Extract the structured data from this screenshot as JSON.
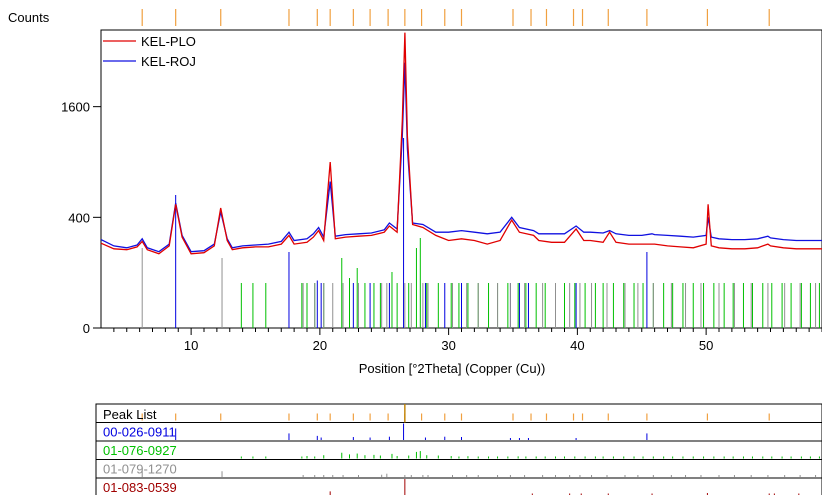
{
  "chart_data": {
    "type": "line",
    "ylabel": "Counts",
    "xlabel": "Position [°2Theta] (Copper (Cu))",
    "xlim": [
      3,
      59
    ],
    "ylim": [
      0,
      2900
    ],
    "y_scale": "sqrt",
    "x_ticks": [
      10,
      20,
      30,
      40,
      50
    ],
    "y_ticks": [
      0,
      400,
      1600
    ],
    "grid": false,
    "legend_position": "top-left",
    "series": [
      {
        "name": "KEL-PLO",
        "color": "#e00000",
        "points": [
          [
            3,
            235
          ],
          [
            4,
            205
          ],
          [
            5,
            200
          ],
          [
            5.8,
            215
          ],
          [
            6.2,
            245
          ],
          [
            6.6,
            200
          ],
          [
            7.5,
            180
          ],
          [
            8.3,
            220
          ],
          [
            8.8,
            500
          ],
          [
            9.3,
            270
          ],
          [
            10,
            180
          ],
          [
            11,
            185
          ],
          [
            11.8,
            220
          ],
          [
            12.3,
            470
          ],
          [
            12.8,
            250
          ],
          [
            13.2,
            200
          ],
          [
            14,
            210
          ],
          [
            15,
            215
          ],
          [
            16,
            215
          ],
          [
            17,
            230
          ],
          [
            17.6,
            280
          ],
          [
            18,
            230
          ],
          [
            19,
            240
          ],
          [
            19.5,
            270
          ],
          [
            19.9,
            310
          ],
          [
            20.3,
            250
          ],
          [
            20.8,
            900
          ],
          [
            21.2,
            260
          ],
          [
            22,
            270
          ],
          [
            23,
            275
          ],
          [
            24,
            280
          ],
          [
            25,
            300
          ],
          [
            25.4,
            340
          ],
          [
            26,
            300
          ],
          [
            26.4,
            1400
          ],
          [
            26.6,
            2850
          ],
          [
            26.8,
            1200
          ],
          [
            27.2,
            350
          ],
          [
            28,
            330
          ],
          [
            29,
            280
          ],
          [
            30,
            250
          ],
          [
            31,
            260
          ],
          [
            32,
            250
          ],
          [
            33,
            230
          ],
          [
            34,
            250
          ],
          [
            34.9,
            380
          ],
          [
            35.5,
            300
          ],
          [
            36.6,
            280
          ],
          [
            37,
            250
          ],
          [
            38,
            240
          ],
          [
            39,
            240
          ],
          [
            39.9,
            320
          ],
          [
            40.5,
            250
          ],
          [
            41,
            250
          ],
          [
            42,
            240
          ],
          [
            42.5,
            300
          ],
          [
            43,
            240
          ],
          [
            44,
            230
          ],
          [
            45,
            230
          ],
          [
            45.8,
            230
          ],
          [
            46,
            230
          ],
          [
            47,
            220
          ],
          [
            48,
            215
          ],
          [
            49,
            210
          ],
          [
            50,
            230
          ],
          [
            50.15,
            500
          ],
          [
            50.4,
            220
          ],
          [
            51,
            210
          ],
          [
            52,
            205
          ],
          [
            53,
            205
          ],
          [
            54,
            210
          ],
          [
            54.8,
            230
          ],
          [
            55,
            220
          ],
          [
            56,
            210
          ],
          [
            57,
            205
          ],
          [
            58,
            205
          ],
          [
            59,
            205
          ]
        ]
      },
      {
        "name": "KEL-ROJ",
        "color": "#1010e0",
        "points": [
          [
            3,
            255
          ],
          [
            4,
            220
          ],
          [
            5,
            210
          ],
          [
            5.8,
            225
          ],
          [
            6.2,
            260
          ],
          [
            6.6,
            210
          ],
          [
            7.5,
            190
          ],
          [
            8.3,
            230
          ],
          [
            8.8,
            510
          ],
          [
            9.3,
            280
          ],
          [
            10,
            190
          ],
          [
            11,
            195
          ],
          [
            11.8,
            230
          ],
          [
            12.3,
            440
          ],
          [
            12.8,
            260
          ],
          [
            13.2,
            210
          ],
          [
            14,
            220
          ],
          [
            15,
            225
          ],
          [
            16,
            230
          ],
          [
            17,
            245
          ],
          [
            17.6,
            300
          ],
          [
            18,
            250
          ],
          [
            19,
            260
          ],
          [
            19.5,
            290
          ],
          [
            19.9,
            330
          ],
          [
            20.3,
            270
          ],
          [
            20.8,
            700
          ],
          [
            21.2,
            275
          ],
          [
            22,
            285
          ],
          [
            23,
            290
          ],
          [
            24,
            295
          ],
          [
            25,
            315
          ],
          [
            25.4,
            360
          ],
          [
            26,
            320
          ],
          [
            26.4,
            1200
          ],
          [
            26.6,
            2300
          ],
          [
            26.8,
            1050
          ],
          [
            27.2,
            360
          ],
          [
            28,
            350
          ],
          [
            29,
            300
          ],
          [
            30,
            300
          ],
          [
            31,
            310
          ],
          [
            32,
            300
          ],
          [
            33,
            290
          ],
          [
            34,
            300
          ],
          [
            34.9,
            400
          ],
          [
            35.5,
            330
          ],
          [
            36.6,
            310
          ],
          [
            37,
            290
          ],
          [
            38,
            290
          ],
          [
            39,
            290
          ],
          [
            39.9,
            340
          ],
          [
            40.5,
            300
          ],
          [
            41,
            300
          ],
          [
            42,
            295
          ],
          [
            42.5,
            310
          ],
          [
            43,
            290
          ],
          [
            44,
            280
          ],
          [
            45,
            280
          ],
          [
            45.8,
            290
          ],
          [
            46,
            285
          ],
          [
            47,
            280
          ],
          [
            48,
            275
          ],
          [
            49,
            270
          ],
          [
            50,
            280
          ],
          [
            50.15,
            400
          ],
          [
            50.4,
            270
          ],
          [
            51,
            260
          ],
          [
            52,
            255
          ],
          [
            53,
            255
          ],
          [
            54,
            260
          ],
          [
            54.8,
            275
          ],
          [
            55,
            265
          ],
          [
            56,
            255
          ],
          [
            57,
            250
          ],
          [
            58,
            250
          ],
          [
            59,
            250
          ]
        ]
      }
    ],
    "peak_list": [
      6.2,
      8.8,
      12.3,
      17.6,
      19.8,
      20.8,
      22.6,
      23.9,
      25.3,
      26.6,
      27.9,
      29.7,
      31.0,
      35.0,
      36.4,
      37.6,
      39.7,
      40.4,
      42.4,
      45.4,
      50.1,
      54.9
    ],
    "reference_patterns": [
      {
        "code": "00-026-0911",
        "color": "#0000e0",
        "peaks": [
          [
            8.8,
            70
          ],
          [
            17.6,
            40
          ],
          [
            19.8,
            25
          ],
          [
            20.1,
            15
          ],
          [
            22.6,
            18
          ],
          [
            23.9,
            15
          ],
          [
            25.4,
            20
          ],
          [
            26.5,
            100
          ],
          [
            28.2,
            15
          ],
          [
            29.7,
            20
          ],
          [
            31.0,
            18
          ],
          [
            34.8,
            12
          ],
          [
            35.5,
            10
          ],
          [
            36.2,
            10
          ],
          [
            39.9,
            12
          ],
          [
            45.4,
            40
          ]
        ]
      },
      {
        "code": "01-076-0927",
        "color": "#00c000",
        "peaks": [
          [
            13.9,
            12
          ],
          [
            14.8,
            8
          ],
          [
            15.8,
            10
          ],
          [
            18.6,
            10
          ],
          [
            19.0,
            15
          ],
          [
            19.6,
            10
          ],
          [
            20.3,
            20
          ],
          [
            21.7,
            35
          ],
          [
            22.3,
            25
          ],
          [
            22.9,
            30
          ],
          [
            23.5,
            20
          ],
          [
            24.2,
            22
          ],
          [
            24.7,
            18
          ],
          [
            25.6,
            28
          ],
          [
            26.0,
            15
          ],
          [
            26.9,
            18
          ],
          [
            27.5,
            40
          ],
          [
            27.8,
            45
          ],
          [
            28.3,
            20
          ],
          [
            29.2,
            18
          ],
          [
            30.2,
            15
          ],
          [
            30.8,
            12
          ],
          [
            31.5,
            14
          ],
          [
            32.3,
            12
          ],
          [
            33.1,
            10
          ],
          [
            33.8,
            11
          ],
          [
            34.6,
            12
          ],
          [
            35.4,
            13
          ],
          [
            36.0,
            10
          ],
          [
            36.8,
            12
          ],
          [
            37.5,
            10
          ],
          [
            38.3,
            9
          ],
          [
            39.0,
            11
          ],
          [
            39.8,
            10
          ],
          [
            40.6,
            9
          ],
          [
            41.4,
            8
          ],
          [
            42.0,
            9
          ],
          [
            42.8,
            8
          ],
          [
            43.6,
            9
          ],
          [
            44.4,
            8
          ],
          [
            45.1,
            9
          ],
          [
            45.9,
            8
          ],
          [
            46.7,
            8
          ],
          [
            47.4,
            7
          ],
          [
            48.2,
            8
          ],
          [
            49.0,
            7
          ],
          [
            49.8,
            8
          ],
          [
            50.6,
            7
          ],
          [
            51.4,
            7
          ],
          [
            52.1,
            8
          ],
          [
            52.9,
            7
          ],
          [
            53.6,
            7
          ],
          [
            54.4,
            8
          ],
          [
            55.1,
            7
          ],
          [
            55.9,
            7
          ],
          [
            56.6,
            8
          ],
          [
            57.4,
            7
          ],
          [
            58.1,
            7
          ],
          [
            58.8,
            6
          ]
        ]
      },
      {
        "code": "01-079-1270",
        "color": "#909090",
        "peaks": [
          [
            6.2,
            40
          ],
          [
            12.4,
            35
          ],
          [
            18.7,
            12
          ],
          [
            19.6,
            10
          ],
          [
            20.3,
            10
          ],
          [
            21.0,
            8
          ],
          [
            21.8,
            8
          ],
          [
            23.0,
            6
          ],
          [
            24.8,
            14
          ],
          [
            25.2,
            20
          ],
          [
            26.6,
            12
          ],
          [
            27.1,
            9
          ],
          [
            28.0,
            10
          ],
          [
            28.4,
            12
          ],
          [
            30.3,
            10
          ],
          [
            31.4,
            8
          ],
          [
            32.3,
            8
          ],
          [
            33.8,
            9
          ],
          [
            34.8,
            7
          ],
          [
            35.9,
            8
          ],
          [
            37.3,
            8
          ],
          [
            38.3,
            6
          ],
          [
            39.4,
            7
          ],
          [
            40.2,
            6
          ],
          [
            41.1,
            7
          ],
          [
            42.3,
            6
          ],
          [
            43.7,
            6
          ],
          [
            44.7,
            7
          ],
          [
            45.9,
            6
          ],
          [
            47.3,
            6
          ],
          [
            48.4,
            7
          ],
          [
            49.6,
            6
          ],
          [
            51.0,
            6
          ],
          [
            52.2,
            6
          ],
          [
            53.5,
            6
          ],
          [
            54.8,
            7
          ],
          [
            56.1,
            6
          ],
          [
            57.3,
            6
          ],
          [
            58.5,
            6
          ]
        ]
      },
      {
        "code": "01-083-0539",
        "color": "#a00000",
        "peaks": [
          [
            20.8,
            25
          ],
          [
            26.6,
            100
          ],
          [
            36.5,
            12
          ],
          [
            39.4,
            10
          ],
          [
            40.3,
            8
          ],
          [
            42.4,
            10
          ],
          [
            45.8,
            7
          ],
          [
            50.1,
            15
          ],
          [
            54.9,
            8
          ],
          [
            55.3,
            7
          ],
          [
            57.2,
            6
          ],
          [
            59.9,
            8
          ]
        ]
      }
    ]
  }
}
